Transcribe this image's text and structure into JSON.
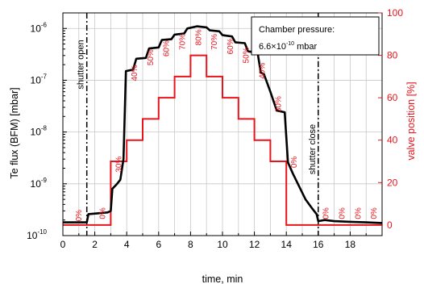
{
  "chart_data": {
    "type": "line",
    "xlabel": "time, min",
    "ylabel_left": "Te flux (BFM) [mbar]",
    "ylabel_right": "valve position [%]",
    "xlim": [
      0,
      20
    ],
    "ylim_left_log10": [
      -10,
      -5.7
    ],
    "ylim_right": [
      -5,
      100
    ],
    "x_ticks": [
      "0",
      "2",
      "4",
      "6",
      "8",
      "10",
      "12",
      "14",
      "16",
      "18"
    ],
    "y_left_ticks": [
      {
        "base": "10",
        "exp": "-10",
        "value": 1e-10
      },
      {
        "base": "10",
        "exp": "-9",
        "value": 1e-09
      },
      {
        "base": "10",
        "exp": "-8",
        "value": 1e-08
      },
      {
        "base": "10",
        "exp": "-7",
        "value": 1e-07
      },
      {
        "base": "10",
        "exp": "-6",
        "value": 1e-06
      }
    ],
    "y_right_ticks": [
      "0",
      "20",
      "40",
      "60",
      "80",
      "100"
    ],
    "series": [
      {
        "axis": "left",
        "color": "#000000",
        "points": [
          [
            0,
            1.8e-10
          ],
          [
            1.5,
            1.8e-10
          ],
          [
            1.6,
            2.6e-10
          ],
          [
            2.8,
            2.8e-10
          ],
          [
            3.0,
            3e-10
          ],
          [
            3.1,
            8e-10
          ],
          [
            3.4,
            1e-09
          ],
          [
            3.6,
            1.2e-09
          ],
          [
            3.8,
            3e-09
          ],
          [
            3.95,
            1.5e-07
          ],
          [
            4.4,
            1.6e-07
          ],
          [
            4.6,
            2.6e-07
          ],
          [
            5.2,
            2.7e-07
          ],
          [
            5.4,
            4.1e-07
          ],
          [
            6.0,
            4.3e-07
          ],
          [
            6.2,
            6e-07
          ],
          [
            6.8,
            6.2e-07
          ],
          [
            7.0,
            7.6e-07
          ],
          [
            7.6,
            8e-07
          ],
          [
            7.8,
            1e-06
          ],
          [
            8.4,
            1.1e-06
          ],
          [
            9.0,
            1.05e-06
          ],
          [
            9.2,
            9.2e-07
          ],
          [
            9.8,
            8.8e-07
          ],
          [
            10.0,
            7.4e-07
          ],
          [
            10.6,
            7e-07
          ],
          [
            10.8,
            5.4e-07
          ],
          [
            11.4,
            5.2e-07
          ],
          [
            11.6,
            3.6e-07
          ],
          [
            12.2,
            3.4e-07
          ],
          [
            12.4,
            1.4e-07
          ],
          [
            12.6,
            1.3e-07
          ],
          [
            13.0,
            6e-08
          ],
          [
            13.4,
            2.6e-08
          ],
          [
            13.9,
            2.4e-08
          ],
          [
            14.1,
            2.6e-09
          ],
          [
            14.4,
            1.6e-09
          ],
          [
            14.8,
            9e-10
          ],
          [
            15.2,
            5e-10
          ],
          [
            15.6,
            3.4e-10
          ],
          [
            15.9,
            2.6e-10
          ],
          [
            16.0,
            1.9e-10
          ],
          [
            16.4,
            2e-10
          ],
          [
            17.0,
            1.9e-10
          ],
          [
            18.0,
            1.85e-10
          ],
          [
            19.0,
            1.8e-10
          ],
          [
            20.0,
            1.75e-10
          ]
        ]
      },
      {
        "axis": "right",
        "color": "#e8141c",
        "steps": [
          {
            "x0": 0,
            "x1": 3,
            "value": 0
          },
          {
            "x0": 3,
            "x1": 4,
            "value": 30
          },
          {
            "x0": 4,
            "x1": 5,
            "value": 40
          },
          {
            "x0": 5,
            "x1": 6,
            "value": 50
          },
          {
            "x0": 6,
            "x1": 7,
            "value": 60
          },
          {
            "x0": 7,
            "x1": 8,
            "value": 70
          },
          {
            "x0": 8,
            "x1": 9,
            "value": 80
          },
          {
            "x0": 9,
            "x1": 10,
            "value": 70
          },
          {
            "x0": 10,
            "x1": 11,
            "value": 60
          },
          {
            "x0": 11,
            "x1": 12,
            "value": 50
          },
          {
            "x0": 12,
            "x1": 13,
            "value": 40
          },
          {
            "x0": 13,
            "x1": 14,
            "value": 30
          },
          {
            "x0": 14,
            "x1": 20,
            "value": 0
          }
        ]
      }
    ],
    "step_labels": [
      {
        "text": "0%",
        "x": 1.0,
        "yfrac": 0.09
      },
      {
        "text": "0%",
        "x": 2.5,
        "yfrac": 0.1
      },
      {
        "text": "30%",
        "x": 3.5,
        "yfrac": 0.32
      },
      {
        "text": "40%",
        "x": 4.5,
        "yfrac": 0.73
      },
      {
        "text": "50%",
        "x": 5.5,
        "yfrac": 0.8
      },
      {
        "text": "60%",
        "x": 6.5,
        "yfrac": 0.84
      },
      {
        "text": "70%",
        "x": 7.5,
        "yfrac": 0.87
      },
      {
        "text": "80%",
        "x": 8.5,
        "yfrac": 0.89
      },
      {
        "text": "70%",
        "x": 9.5,
        "yfrac": 0.87
      },
      {
        "text": "60%",
        "x": 10.5,
        "yfrac": 0.85
      },
      {
        "text": "50%",
        "x": 11.5,
        "yfrac": 0.81
      },
      {
        "text": "40%",
        "x": 12.5,
        "yfrac": 0.74
      },
      {
        "text": "30%",
        "x": 13.5,
        "yfrac": 0.59
      },
      {
        "text": "0%",
        "x": 14.5,
        "yfrac": 0.33
      },
      {
        "text": "0%",
        "x": 16.5,
        "yfrac": 0.1
      },
      {
        "text": "0%",
        "x": 17.5,
        "yfrac": 0.1
      },
      {
        "text": "0%",
        "x": 18.5,
        "yfrac": 0.1
      },
      {
        "text": "0%",
        "x": 19.5,
        "yfrac": 0.1
      }
    ],
    "events": [
      {
        "x": 1.5,
        "label": "shutter open"
      },
      {
        "x": 16.0,
        "label": "shutter close"
      }
    ],
    "annotation": {
      "line1": "Chamber pressure:",
      "line2_base": "6.6×10",
      "line2_exp": "-10",
      "line2_unit": " mbar"
    },
    "grid": true
  }
}
